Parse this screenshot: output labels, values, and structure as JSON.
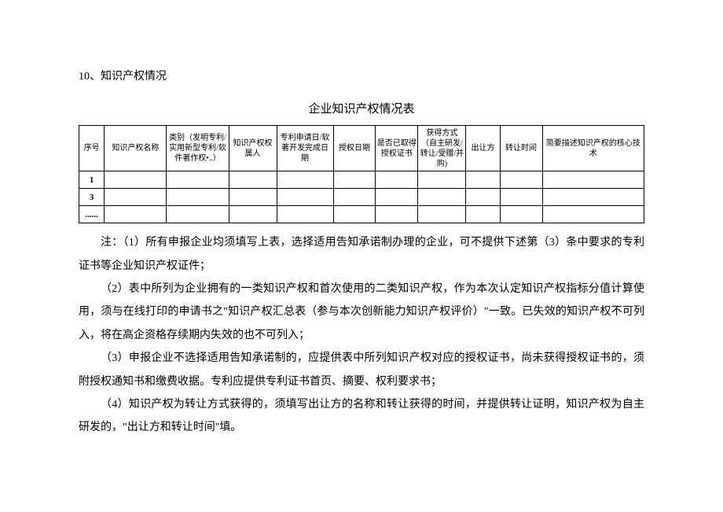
{
  "section": {
    "title": "10、知识产权情况"
  },
  "table": {
    "title": "企业知识产权情况表",
    "headers": {
      "seq": "序号",
      "name": "知识产权名称",
      "type": "类别（发明专利/实用新型专利/软件著作权•..）",
      "owner": "知识产权权属人",
      "date": "专利申请日/软著开发完成日期",
      "authdate": "授权日期",
      "cert": "是否已取得授权证书",
      "method": "获得方式（自主研发/转让/受赠/并购)",
      "transferor": "出让方",
      "transfertime": "转让时间",
      "desc": "简要描述知识产权的核心技术"
    },
    "rows": [
      {
        "seq": "1"
      },
      {
        "seq": "3"
      },
      {
        "seq": "......"
      }
    ]
  },
  "notes": {
    "n1": "注：（1）所有申报企业均须填写上表，选择适用告知承诺制办理的企业，可不提供下述第（3）条中要求的专利证书等企业知识产权证件；",
    "n2": "（2）表中所列为企业拥有的一类知识产权和首次使用的二类知识产权，作为本次认定知识产权指标分值计算使用，须与在线打印的申请书之\"知识产权汇总表（参与本次创新能力知识产权评价）\"一致。已失效的知识产权不可列入，将在高企资格存续期内失效的也不可列入；",
    "n3": "（3）申报企业不选择适用告知承诺制的，应提供表中所列知识产权对应的授权证书，尚未获得授权证书的，须附授权通知书和缴费收据。专利应提供专利证书首页、摘要、权利要求书；",
    "n4": "（4）知识产权为转让方式获得的，须填写出让方的名称和转让获得的时间，并提供转让证明，知识产权为自主研发的，\"出让方和转让时间\"填。"
  }
}
